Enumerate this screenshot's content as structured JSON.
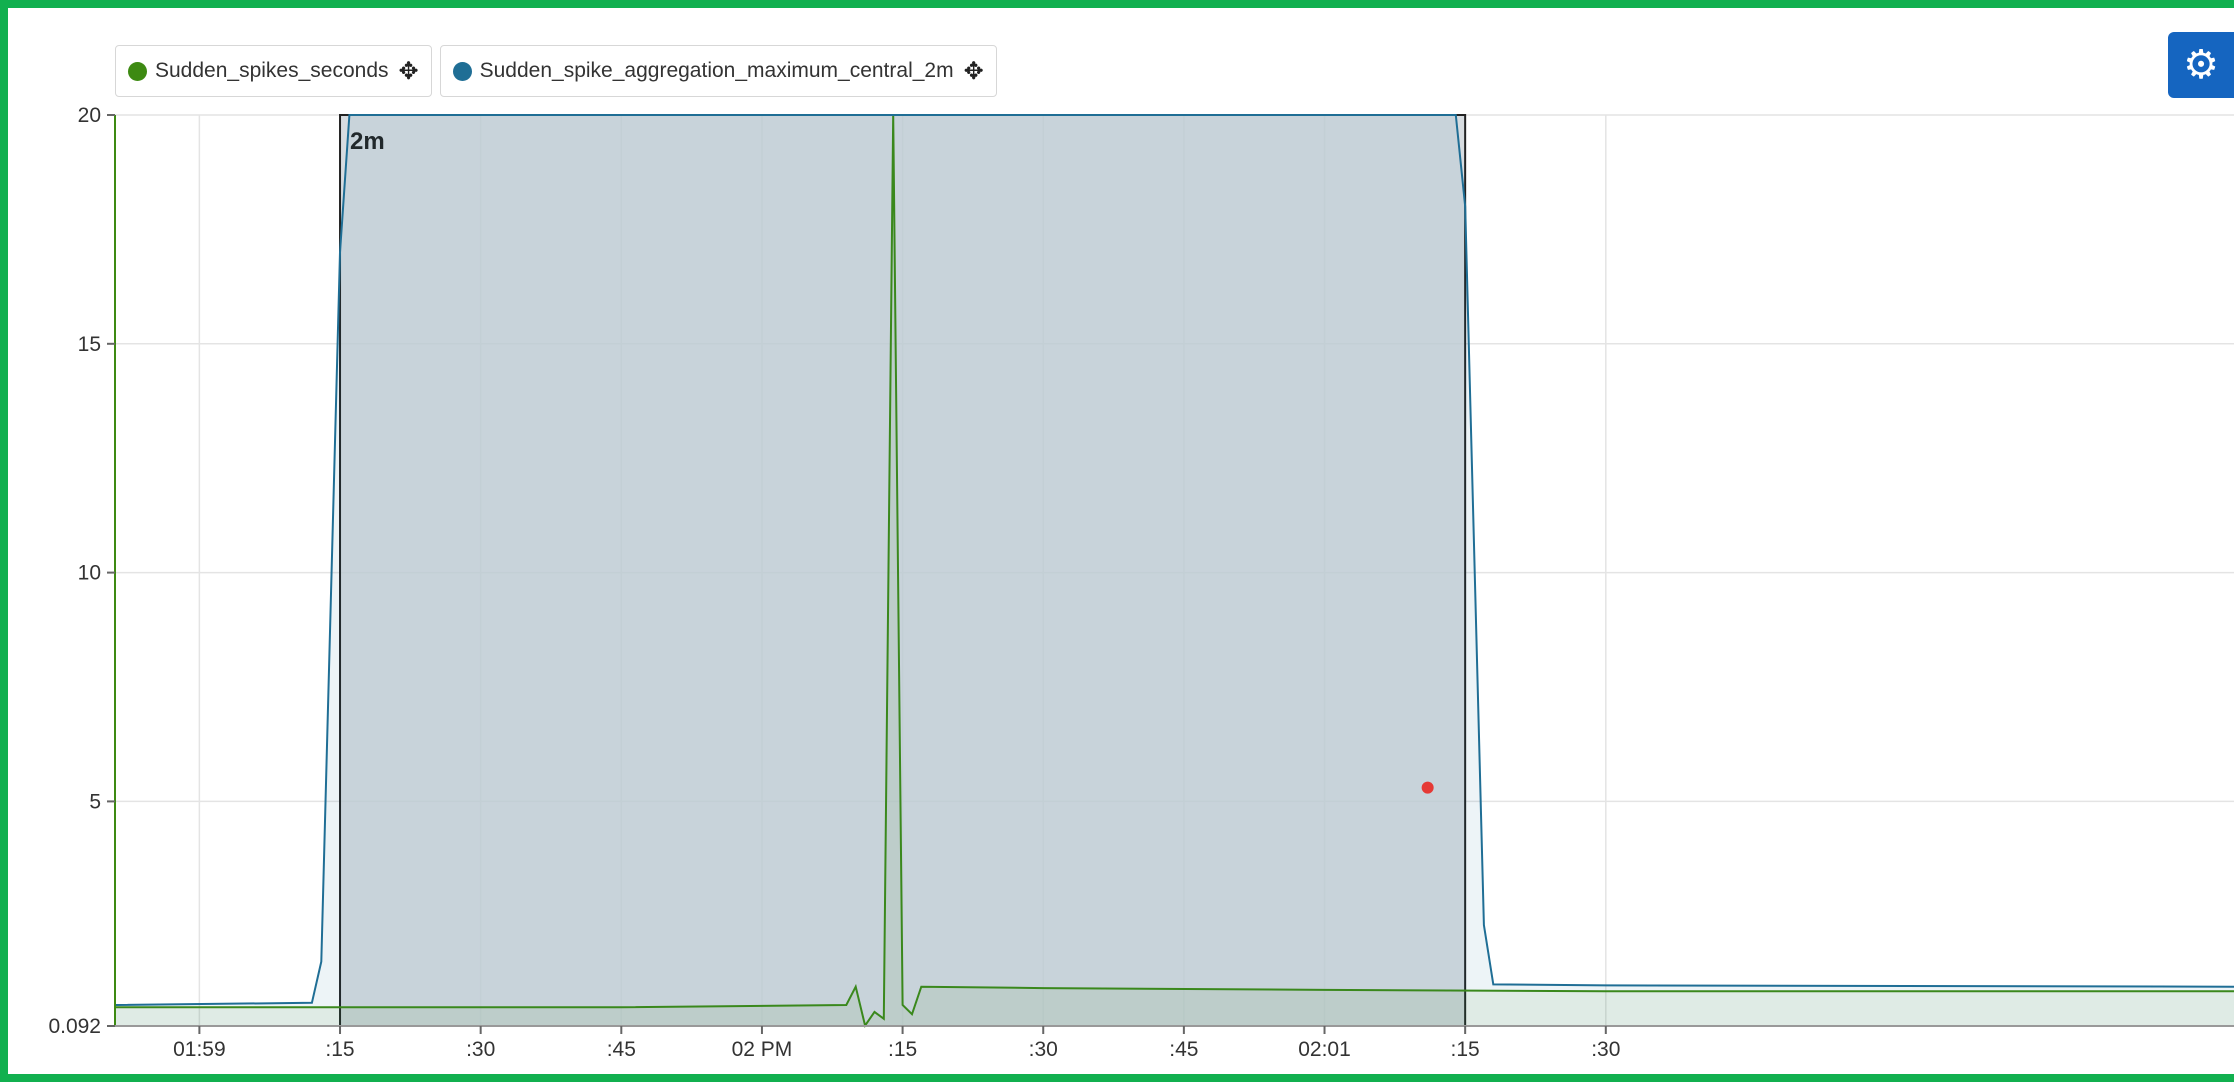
{
  "colors": {
    "frame": "#11b04f",
    "series1": "#3d8a12",
    "series2": "#1f6e95",
    "selection_fill": "#cdd3d8",
    "marker": "#e53935",
    "settings_button": "#1565c0"
  },
  "legend": [
    {
      "name": "Sudden_spikes_seconds",
      "color": "#3d8a12",
      "icon": "move-icon"
    },
    {
      "name": "Sudden_spike_aggregation_maximum_central_2m",
      "color": "#1f6e95",
      "icon": "move-icon"
    }
  ],
  "settings": {
    "icon": "gear-icon",
    "glyph": "⚙"
  },
  "move_glyph": "✥",
  "chart_data": {
    "type": "line",
    "title": "",
    "xlabel": "",
    "ylabel": "",
    "x_range": [
      "13:58:51",
      "14:02:37"
    ],
    "ylim": [
      0.092,
      20
    ],
    "y_ticks": [
      {
        "value": 0.092,
        "label": "0.092"
      },
      {
        "value": 5,
        "label": "5"
      },
      {
        "value": 10,
        "label": "10"
      },
      {
        "value": 15,
        "label": "15"
      },
      {
        "value": 20,
        "label": "20"
      }
    ],
    "x_ticks": [
      {
        "time": "13:59:00",
        "label": "01:59"
      },
      {
        "time": "13:59:15",
        "label": ":15"
      },
      {
        "time": "13:59:30",
        "label": ":30"
      },
      {
        "time": "13:59:45",
        "label": ":45"
      },
      {
        "time": "14:00:00",
        "label": "02 PM"
      },
      {
        "time": "14:00:15",
        "label": ":15"
      },
      {
        "time": "14:00:30",
        "label": ":30"
      },
      {
        "time": "14:00:45",
        "label": ":45"
      },
      {
        "time": "14:01:00",
        "label": "02:01"
      },
      {
        "time": "14:01:15",
        "label": ":15"
      },
      {
        "time": "14:01:30",
        "label": ":30"
      }
    ],
    "grid": true,
    "selection": {
      "start": "13:59:15",
      "end": "14:01:15",
      "label": "2m"
    },
    "marker": {
      "time": "14:01:11",
      "value": 5.3
    },
    "series": [
      {
        "name": "Sudden_spikes_seconds",
        "color": "#3d8a12",
        "area": true,
        "points": [
          [
            "13:58:51",
            0.5
          ],
          [
            "13:59:15",
            0.5
          ],
          [
            "13:59:45",
            0.5
          ],
          [
            "14:00:09",
            0.55
          ],
          [
            "14:00:10",
            0.95
          ],
          [
            "14:00:11",
            0.1
          ],
          [
            "14:00:12",
            0.4
          ],
          [
            "14:00:13",
            0.25
          ],
          [
            "14:00:14",
            20
          ],
          [
            "14:00:15",
            0.55
          ],
          [
            "14:00:16",
            0.35
          ],
          [
            "14:00:17",
            0.95
          ],
          [
            "14:00:30",
            0.92
          ],
          [
            "14:01:00",
            0.88
          ],
          [
            "14:01:30",
            0.85
          ],
          [
            "14:02:37",
            0.85
          ]
        ]
      },
      {
        "name": "Sudden_spike_aggregation_maximum_central_2m",
        "color": "#1f6e95",
        "area": true,
        "points": [
          [
            "13:58:51",
            0.55
          ],
          [
            "13:59:12",
            0.6
          ],
          [
            "13:59:13",
            1.5
          ],
          [
            "13:59:15",
            17
          ],
          [
            "13:59:16",
            20
          ],
          [
            "14:01:14",
            20
          ],
          [
            "14:01:15",
            18
          ],
          [
            "14:01:17",
            2.3
          ],
          [
            "14:01:18",
            1.0
          ],
          [
            "14:01:30",
            0.98
          ],
          [
            "14:02:37",
            0.95
          ]
        ]
      }
    ]
  }
}
